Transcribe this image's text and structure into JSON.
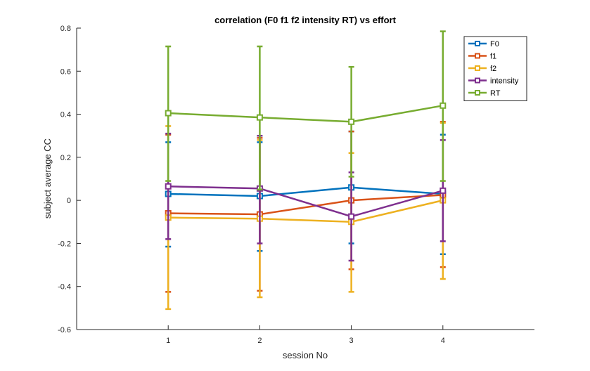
{
  "chart_data": {
    "type": "line",
    "title": "correlation (F0 f1 f2 intensity RT) vs effort",
    "xlabel": "session No",
    "ylabel": "subject average CC",
    "xlim": [
      0,
      5
    ],
    "ylim": [
      -0.6,
      0.8
    ],
    "x": [
      1,
      2,
      3,
      4
    ],
    "xticks": [
      1,
      2,
      3,
      4
    ],
    "yticks": [
      -0.6,
      -0.4,
      -0.2,
      0,
      0.2,
      0.4,
      0.6,
      0.8
    ],
    "ytick_labels": [
      "-0.6",
      "-0.4",
      "-0.2",
      "0",
      "0.2",
      "0.4",
      "0.6",
      "0.8"
    ],
    "xtick_labels": [
      "1",
      "2",
      "3",
      "4"
    ],
    "grid": false,
    "legend_position": "top-right",
    "marker": "square",
    "error_bars": true,
    "series": [
      {
        "name": "F0",
        "color": "#0072BD",
        "values": [
          0.03,
          0.02,
          0.06,
          0.03
        ],
        "err_low": [
          -0.215,
          -0.235,
          -0.2,
          -0.25
        ],
        "err_high": [
          0.27,
          0.27,
          0.32,
          0.305
        ]
      },
      {
        "name": "f1",
        "color": "#D95319",
        "values": [
          -0.06,
          -0.065,
          0.0,
          0.025
        ],
        "err_low": [
          -0.425,
          -0.42,
          -0.32,
          -0.31
        ],
        "err_high": [
          0.305,
          0.29,
          0.32,
          0.365
        ]
      },
      {
        "name": "f2",
        "color": "#EDB120",
        "values": [
          -0.08,
          -0.085,
          -0.1,
          0.0
        ],
        "err_low": [
          -0.505,
          -0.45,
          -0.425,
          -0.365
        ],
        "err_high": [
          0.345,
          0.28,
          0.22,
          0.36
        ]
      },
      {
        "name": "intensity",
        "color": "#7E2F8E",
        "values": [
          0.065,
          0.055,
          -0.075,
          0.045
        ],
        "err_low": [
          -0.18,
          -0.2,
          -0.28,
          -0.19
        ],
        "err_high": [
          0.31,
          0.3,
          0.13,
          0.28
        ]
      },
      {
        "name": "RT",
        "color": "#77AC30",
        "values": [
          0.405,
          0.385,
          0.365,
          0.44
        ],
        "err_low": [
          0.09,
          0.05,
          0.11,
          0.09
        ],
        "err_high": [
          0.715,
          0.715,
          0.62,
          0.785
        ]
      }
    ]
  }
}
